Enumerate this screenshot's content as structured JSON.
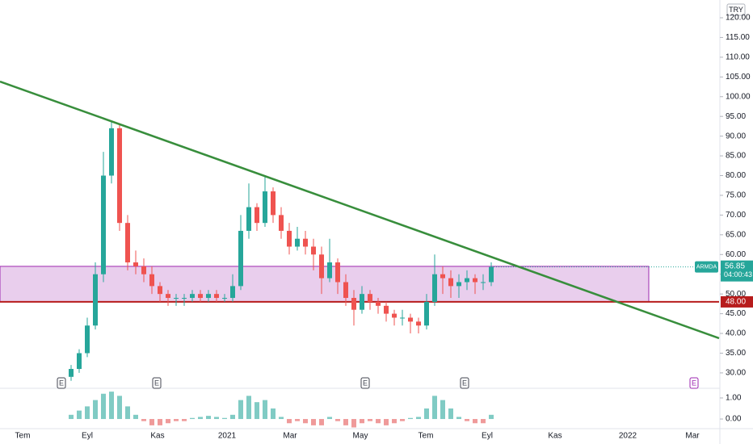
{
  "chart_data": {
    "type": "candlestick",
    "symbol": "ARMDA",
    "currency": "TRY",
    "countdown": "04:00:43",
    "last_price": {
      "value": 56.85,
      "label": "56.85"
    },
    "level": {
      "value": 48,
      "label": "48.00",
      "color": "#b71c1c"
    },
    "zone": {
      "low": 48,
      "high": 57,
      "color": "#e1bee7"
    },
    "up_color": "#26a69a",
    "down_color": "#ef5350",
    "ylim": [
      26.3,
      124.5
    ],
    "yticks": [
      {
        "value": 30,
        "label": "30.00"
      },
      {
        "value": 35,
        "label": "35.00"
      },
      {
        "value": 40,
        "label": "40.00"
      },
      {
        "value": 45,
        "label": "45.00"
      },
      {
        "value": 50,
        "label": "50.00"
      },
      {
        "value": 55,
        "label": "55.00"
      },
      {
        "value": 60,
        "label": "60.00"
      },
      {
        "value": 65,
        "label": "65.00"
      },
      {
        "value": 70,
        "label": "70.00"
      },
      {
        "value": 75,
        "label": "75.00"
      },
      {
        "value": 80,
        "label": "80.00"
      },
      {
        "value": 85,
        "label": "85.00"
      },
      {
        "value": 90,
        "label": "90.00"
      },
      {
        "value": 95,
        "label": "95.00"
      },
      {
        "value": 100,
        "label": "100.00"
      },
      {
        "value": 105,
        "label": "105.00"
      },
      {
        "value": 110,
        "label": "110.00"
      },
      {
        "value": 115,
        "label": "115.00"
      },
      {
        "value": 120,
        "label": "120.00"
      }
    ],
    "xticks": [
      "Tem",
      "Eyl",
      "Kas",
      "2021",
      "Mar",
      "May",
      "Tem",
      "Eyl",
      "Kas",
      "2022",
      "Mar"
    ],
    "events": [
      "E",
      "E",
      "E",
      "E",
      "E"
    ],
    "open": [
      29,
      31,
      35,
      42,
      55,
      80,
      92,
      68,
      58,
      57,
      55,
      52,
      50,
      49,
      49,
      49,
      50,
      49,
      50,
      49,
      49,
      52,
      66,
      72,
      68,
      76,
      70,
      66,
      62,
      64,
      62,
      60,
      54,
      58,
      53,
      49,
      46,
      50,
      48,
      47,
      45,
      44,
      44,
      43,
      42,
      48,
      55,
      54,
      52,
      53,
      54,
      53,
      53
    ],
    "high": [
      32,
      36,
      44,
      58,
      86,
      94,
      93,
      70,
      61,
      59,
      57,
      53,
      51,
      50,
      50,
      51,
      51,
      51,
      51,
      50,
      55,
      70,
      78,
      73,
      80,
      77,
      72,
      68,
      67,
      66,
      64,
      62,
      64,
      59,
      55,
      51,
      52,
      51,
      49,
      48,
      46,
      46,
      45,
      44,
      50,
      60,
      57,
      56,
      55,
      56,
      55,
      55,
      58
    ],
    "low": [
      28,
      30,
      34,
      41,
      53,
      78,
      66,
      56,
      55,
      53,
      50,
      48,
      47,
      47,
      47,
      48,
      48,
      48,
      48,
      48,
      48,
      51,
      64,
      66,
      67,
      68,
      64,
      60,
      61,
      60,
      56,
      50,
      53,
      50,
      47,
      42,
      45,
      46,
      45,
      43,
      42,
      42,
      40,
      40,
      41,
      47,
      50,
      49,
      49,
      51,
      50,
      51,
      52
    ],
    "close": [
      31,
      35,
      42,
      55,
      80,
      92,
      68,
      58,
      57,
      55,
      52,
      50,
      49,
      49,
      49,
      50,
      49,
      50,
      49,
      49,
      52,
      66,
      72,
      68,
      76,
      70,
      66,
      62,
      64,
      62,
      60,
      54,
      58,
      53,
      49,
      46,
      50,
      48,
      47,
      45,
      44,
      44,
      43,
      42,
      48,
      55,
      54,
      52,
      53,
      54,
      53,
      53,
      56.85
    ],
    "indicator": {
      "ylim": [
        -0.42,
        1.42
      ],
      "yticks": [
        {
          "value": 0,
          "label": "0.00"
        },
        {
          "value": 1,
          "label": "1.00"
        }
      ],
      "positive_color": "#80cbc4",
      "negative_color": "#ef9a9a",
      "values": [
        0.2,
        0.4,
        0.6,
        0.9,
        1.2,
        1.3,
        1.1,
        0.6,
        0.2,
        -0.1,
        -0.3,
        -0.3,
        -0.2,
        -0.1,
        -0.1,
        0.05,
        0.1,
        0.15,
        0.1,
        0.05,
        0.2,
        0.9,
        1.1,
        0.8,
        0.9,
        0.5,
        0.1,
        -0.2,
        -0.1,
        -0.2,
        -0.3,
        -0.3,
        0.1,
        -0.1,
        -0.3,
        -0.4,
        -0.2,
        -0.1,
        -0.2,
        -0.3,
        -0.2,
        -0.1,
        0.05,
        0.1,
        0.5,
        1.1,
        0.9,
        0.5,
        0.1,
        -0.1,
        -0.2,
        -0.2,
        0.2
      ]
    }
  }
}
